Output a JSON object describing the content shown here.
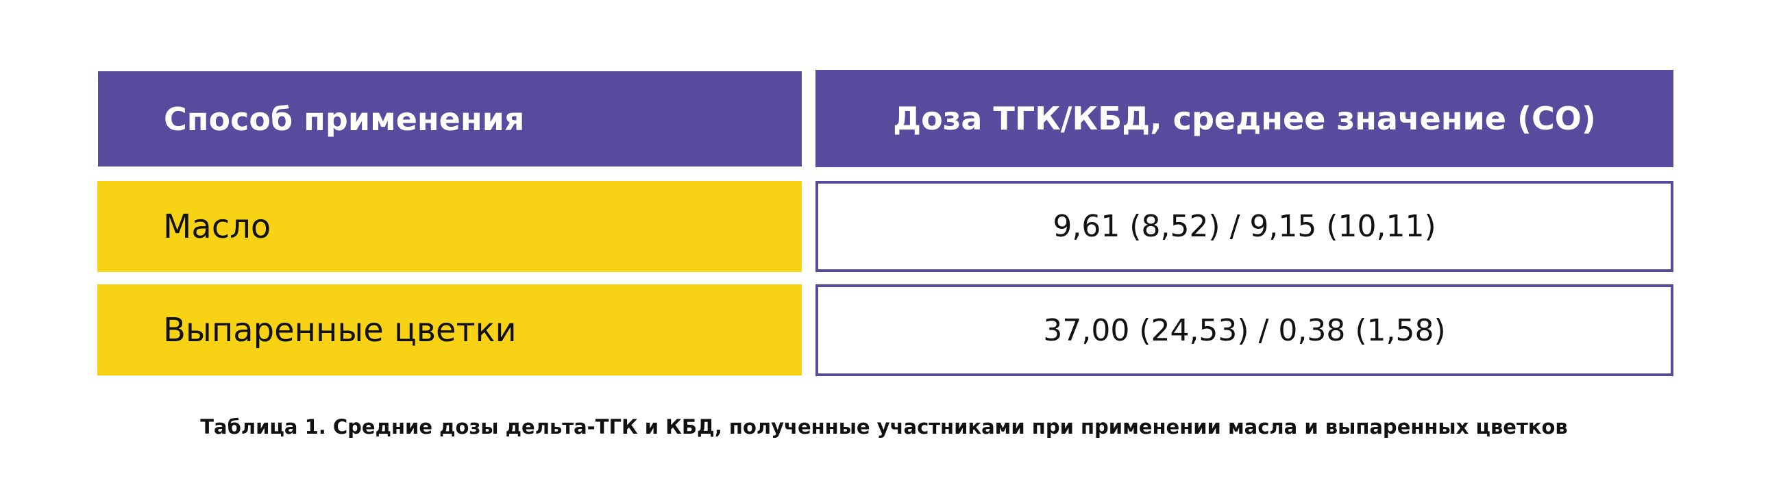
{
  "table": {
    "headers": {
      "method": "Способ применения",
      "dose": "Доза ТГК/КБД, среднее значение (СО)"
    },
    "rows": [
      {
        "method": "Масло",
        "dose": "9,61 (8,52) / 9,15 (10,11)"
      },
      {
        "method": "Выпаренные цветки",
        "dose": "37,00 (24,53) / 0,38 (1,58)"
      }
    ]
  },
  "caption": "Таблица 1. Средние дозы дельта-ТГК и КБД, полученные участниками при применении масла и выпаренных цветков",
  "colors": {
    "header_bg": "#584a9c",
    "method_cell_bg": "#f8d315",
    "value_border": "#584a9c"
  }
}
